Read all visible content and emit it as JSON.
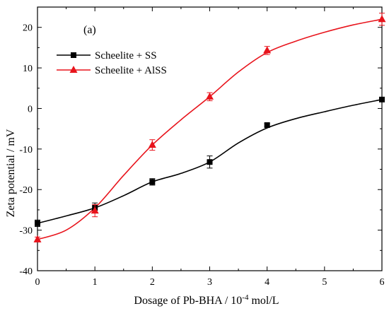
{
  "chart_data": {
    "type": "line",
    "panel_label": "(a)",
    "xlabel": {
      "prefix": "Dosage of Pb-BHA / 10",
      "exponent": "-4",
      "suffix": " mol/L"
    },
    "ylabel": "Zeta potential / mV",
    "xlim": [
      0,
      6
    ],
    "ylim": [
      -40,
      25
    ],
    "xticks": [
      0,
      1,
      2,
      3,
      4,
      5,
      6
    ],
    "yticks": [
      -40,
      -30,
      -20,
      -10,
      0,
      10,
      20
    ],
    "legend_position": "upper-left",
    "grid": false,
    "series": [
      {
        "name": "Scheelite + SS",
        "color": "#000000",
        "marker": "square",
        "x": [
          0,
          1,
          2,
          3,
          4,
          6
        ],
        "y": [
          -28.3,
          -24.5,
          -18.1,
          -13.2,
          -4.1,
          2.2
        ],
        "error": [
          0.8,
          1.2,
          0.8,
          1.5,
          0.4,
          0.4
        ],
        "curve": [
          [
            0,
            -28.3
          ],
          [
            0.5,
            -26.5
          ],
          [
            1,
            -24.5
          ],
          [
            1.5,
            -21.5
          ],
          [
            2,
            -18.1
          ],
          [
            2.5,
            -16.0
          ],
          [
            3,
            -13.2
          ],
          [
            3.5,
            -8.5
          ],
          [
            4,
            -4.8
          ],
          [
            4.5,
            -2.5
          ],
          [
            5,
            -0.8
          ],
          [
            5.5,
            0.8
          ],
          [
            6,
            2.2
          ]
        ]
      },
      {
        "name": "Scheelite + AlSS",
        "color": "#e8141c",
        "marker": "triangle",
        "x": [
          0,
          1,
          2,
          3,
          4,
          6
        ],
        "y": [
          -32.3,
          -25.2,
          -9.0,
          2.9,
          14.3,
          22.0
        ],
        "error": [
          0.6,
          1.5,
          1.3,
          1.0,
          1.0,
          1.5
        ],
        "curve": [
          [
            0,
            -32.3
          ],
          [
            0.5,
            -30.0
          ],
          [
            1,
            -24.5
          ],
          [
            1.5,
            -16.5
          ],
          [
            2,
            -9.0
          ],
          [
            2.5,
            -2.8
          ],
          [
            3,
            2.9
          ],
          [
            3.5,
            9.0
          ],
          [
            4,
            13.8
          ],
          [
            4.5,
            16.6
          ],
          [
            5,
            18.8
          ],
          [
            5.5,
            20.6
          ],
          [
            6,
            22.0
          ]
        ]
      }
    ]
  }
}
